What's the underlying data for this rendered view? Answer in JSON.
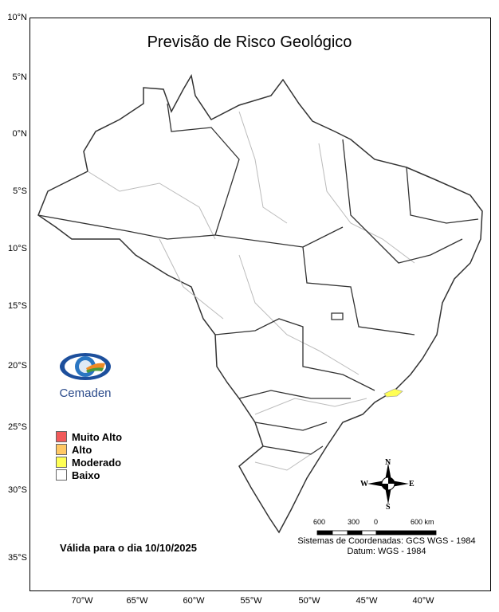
{
  "title": "Previsão de Risco Geológico",
  "lat_ticks": [
    "10°N",
    "5°N",
    "0°N",
    "5°S",
    "10°S",
    "15°S",
    "20°S",
    "25°S",
    "30°S",
    "35°S"
  ],
  "lon_ticks": [
    "70°W",
    "65°W",
    "60°W",
    "55°W",
    "50°W",
    "45°W",
    "40°W"
  ],
  "logo": {
    "text": "Cemaden"
  },
  "legend": [
    {
      "label": "Muito Alto",
      "color": "#f15a5a"
    },
    {
      "label": "Alto",
      "color": "#ffc864"
    },
    {
      "label": "Moderado",
      "color": "#ffff55"
    },
    {
      "label": "Baixo",
      "color": "#ffffff"
    }
  ],
  "valid": "Válida para o dia 10/10/2025",
  "compass": {
    "n": "N",
    "s": "S",
    "e": "E",
    "w": "W"
  },
  "scale": {
    "labels": [
      "600",
      "300",
      "0",
      "600 km"
    ]
  },
  "coords": {
    "line1": "Sistemas de Coordenadas: GCS WGS - 1984",
    "line2": "Datum: WGS - 1984"
  }
}
